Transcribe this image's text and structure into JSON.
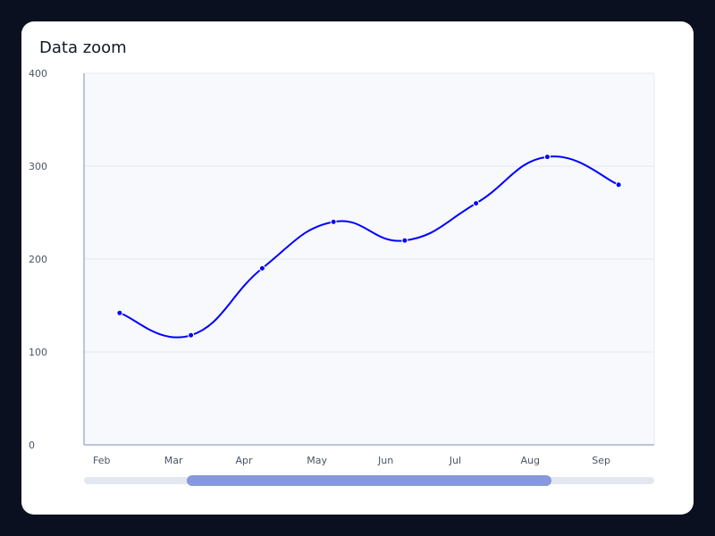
{
  "chart_data": {
    "type": "line",
    "title": "Data zoom",
    "x_tick_labels": [
      "Feb",
      "Mar",
      "Apr",
      "May",
      "Jun",
      "Jul",
      "Aug",
      "Sep"
    ],
    "categories": [
      "Feb",
      "Mar",
      "Apr",
      "May",
      "Jun",
      "Jul",
      "Aug",
      "Sep"
    ],
    "series": [
      {
        "values": [
          142,
          118,
          190,
          240,
          220,
          260,
          310,
          280
        ]
      }
    ],
    "ylim": [
      0,
      400
    ],
    "y_ticks": [
      0,
      100,
      200,
      300,
      400
    ],
    "grid": true,
    "line_color": "#0000ff",
    "zoom_range": [
      0.18,
      0.82
    ]
  }
}
